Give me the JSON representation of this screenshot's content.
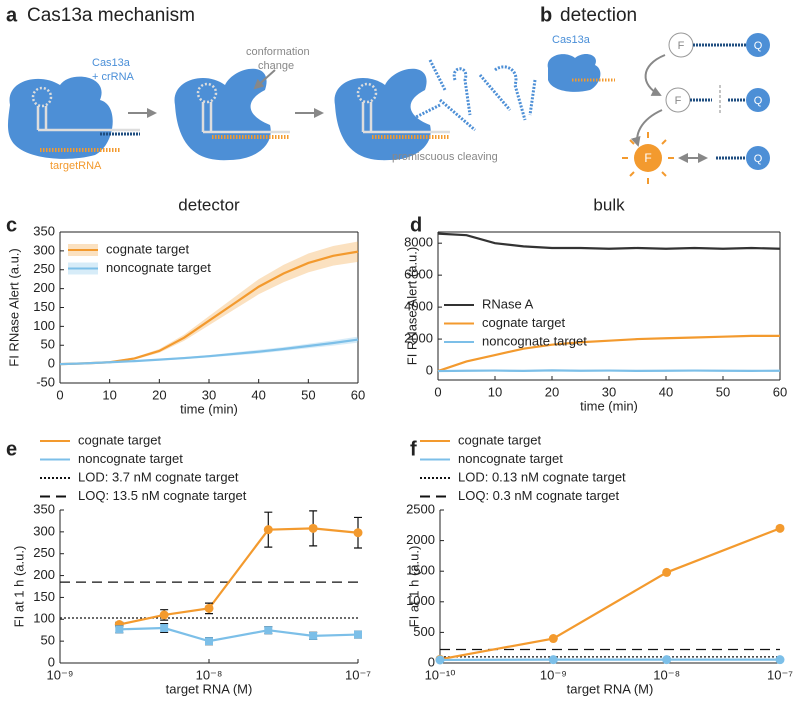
{
  "figure": {
    "panel_a": {
      "letter": "a",
      "title": "Cas13a mechanism",
      "cas13a": "Cas13a",
      "crrna": "+ crRNA",
      "target": "targetRNA",
      "conf1": "conformation",
      "conf2": "change",
      "cleave": "promiscuous cleaving"
    },
    "panel_b": {
      "letter": "b",
      "title": "detection",
      "cas13a": "Cas13a",
      "fluor": "F",
      "quench": "Q"
    },
    "col_left": "detector",
    "col_right": "bulk"
  },
  "chart_data": [
    {
      "type": "line",
      "label": "c",
      "xlabel": "time (min)",
      "ylabel": "FI RNase Alert (a.u.)",
      "legend": "upper left",
      "x": [
        0,
        5,
        10,
        15,
        20,
        25,
        30,
        35,
        40,
        45,
        50,
        55,
        60
      ],
      "xlim": [
        0,
        60
      ],
      "xticks": [
        0,
        10,
        20,
        30,
        40,
        50,
        60
      ],
      "ylim": [
        -50,
        350
      ],
      "yticks": [
        -50,
        0,
        50,
        100,
        150,
        200,
        250,
        300,
        350
      ],
      "series": [
        {
          "name": "cognate target",
          "color": "#f39a2e",
          "values": [
            0,
            2,
            5,
            15,
            35,
            70,
            115,
            160,
            205,
            240,
            268,
            287,
            298
          ],
          "error": [
            0,
            1,
            2,
            3,
            5,
            8,
            12,
            16,
            20,
            23,
            25,
            26,
            27
          ]
        },
        {
          "name": "noncognate target",
          "color": "#7cbfe8",
          "values": [
            0,
            2,
            5,
            8,
            12,
            16,
            21,
            27,
            33,
            40,
            48,
            56,
            65
          ],
          "error": [
            0,
            1,
            1,
            2,
            2,
            3,
            3,
            4,
            5,
            5,
            6,
            7,
            8
          ]
        }
      ]
    },
    {
      "type": "line",
      "label": "d",
      "xlabel": "time (min)",
      "ylabel": "FI RNase Alert (a.u.)",
      "legend": "center left",
      "x": [
        0,
        5,
        10,
        15,
        20,
        25,
        30,
        35,
        40,
        45,
        50,
        55,
        60
      ],
      "xlim": [
        0,
        60
      ],
      "xticks": [
        0,
        10,
        20,
        30,
        40,
        50,
        60
      ],
      "ylim": [
        -560,
        8700
      ],
      "yticks": [
        0,
        2000,
        4000,
        6000,
        8000
      ],
      "series": [
        {
          "name": "RNase A",
          "color": "#333333",
          "values": [
            8600,
            8500,
            8000,
            7800,
            7700,
            7700,
            7650,
            7700,
            7650,
            7700,
            7650,
            7700,
            7650
          ]
        },
        {
          "name": "cognate target",
          "color": "#f39a2e",
          "values": [
            0,
            600,
            1000,
            1400,
            1650,
            1800,
            1900,
            2000,
            2050,
            2100,
            2150,
            2200,
            2200
          ]
        },
        {
          "name": "noncognate target",
          "color": "#7cbfe8",
          "values": [
            0,
            20,
            30,
            10,
            40,
            20,
            30,
            10,
            20,
            30,
            20,
            10,
            20
          ]
        }
      ]
    },
    {
      "type": "line",
      "label": "e",
      "xlabel": "target RNA (M)",
      "ylabel": "FI at 1 h (a.u.)",
      "legend": "above",
      "xscale": "log",
      "x": [
        2.5e-09,
        5e-09,
        1e-08,
        2.5e-08,
        5e-08,
        1e-07
      ],
      "xlim": [
        1e-09,
        1e-07
      ],
      "xticks": [
        {
          "value": 1e-09,
          "label": "10⁻⁹"
        },
        {
          "value": 1e-08,
          "label": "10⁻⁸"
        },
        {
          "value": 1e-07,
          "label": "10⁻⁷"
        }
      ],
      "ylim": [
        0,
        350
      ],
      "yticks": [
        0,
        50,
        100,
        150,
        200,
        250,
        300,
        350
      ],
      "series": [
        {
          "name": "cognate target",
          "color": "#f39a2e",
          "marker": "circle",
          "values": [
            88,
            110,
            125,
            305,
            308,
            298
          ],
          "error": [
            5,
            12,
            12,
            40,
            40,
            35
          ]
        },
        {
          "name": "noncognate target",
          "color": "#7cbfe8",
          "marker": "square",
          "values": [
            77,
            80,
            50,
            75,
            62,
            65
          ],
          "error": [
            8,
            10,
            8,
            8,
            8,
            8
          ]
        }
      ],
      "hlines": [
        {
          "name": "LOD: 3.7 nM cognate target",
          "value": 103,
          "style": "dotted"
        },
        {
          "name": "LOQ: 13.5 nM cognate target",
          "value": 185,
          "style": "dashed"
        }
      ]
    },
    {
      "type": "line",
      "label": "f",
      "xlabel": "target RNA (M)",
      "ylabel": "FI at 1 h (a.u.)",
      "legend": "above",
      "xscale": "log",
      "x": [
        1e-10,
        1e-09,
        1e-08,
        1e-07
      ],
      "xlim": [
        1e-10,
        1e-07
      ],
      "xticks": [
        {
          "value": 1e-10,
          "label": "10⁻¹⁰"
        },
        {
          "value": 1e-09,
          "label": "10⁻⁹"
        },
        {
          "value": 1e-08,
          "label": "10⁻⁸"
        },
        {
          "value": 1e-07,
          "label": "10⁻⁷"
        }
      ],
      "ylim": [
        0,
        2500
      ],
      "yticks": [
        0,
        500,
        1000,
        1500,
        2000,
        2500
      ],
      "series": [
        {
          "name": "cognate target",
          "color": "#f39a2e",
          "marker": "circle",
          "values": [
            60,
            400,
            1480,
            2200
          ]
        },
        {
          "name": "noncognate target",
          "color": "#7cbfe8",
          "marker": "circle",
          "values": [
            50,
            55,
            55,
            55
          ]
        }
      ],
      "hlines": [
        {
          "name": "LOD: 0.13 nM cognate target",
          "value": 100,
          "style": "dotted"
        },
        {
          "name": "LOQ: 0.3 nM cognate target",
          "value": 220,
          "style": "dashed"
        }
      ]
    }
  ]
}
